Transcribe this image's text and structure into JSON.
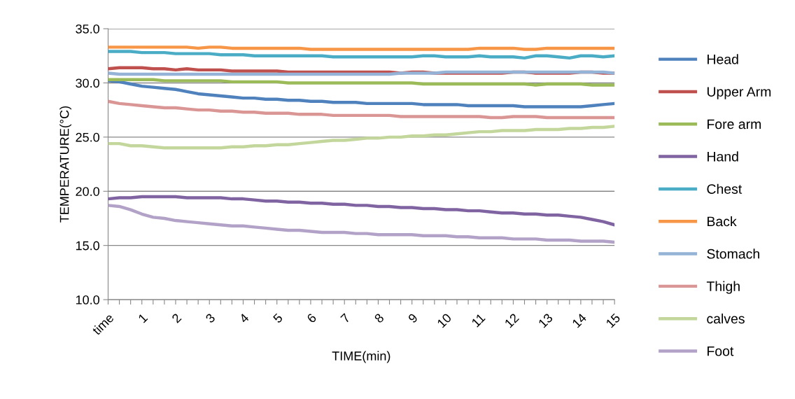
{
  "chart_data": {
    "type": "line",
    "xlabel": "TIME(min)",
    "ylabel": "TEMPERATURE(°C)",
    "categories": [
      "time",
      null,
      null,
      "1",
      null,
      null,
      "2",
      null,
      null,
      "3",
      null,
      null,
      "4",
      null,
      null,
      "5",
      null,
      null,
      "6",
      null,
      null,
      "7",
      null,
      null,
      "8",
      null,
      null,
      "9",
      null,
      null,
      "10",
      null,
      null,
      "11",
      null,
      null,
      "12",
      null,
      null,
      "13",
      null,
      null,
      "14",
      null,
      null,
      "15"
    ],
    "ylim": [
      10,
      35
    ],
    "yticks": [
      {
        "value": 10,
        "label": "10.0"
      },
      {
        "value": 15,
        "label": "15.0"
      },
      {
        "value": 20,
        "label": "20.0"
      },
      {
        "value": 25,
        "label": "25.0"
      },
      {
        "value": 30,
        "label": "30.0"
      },
      {
        "value": 35,
        "label": "35.0"
      }
    ],
    "grid": "y",
    "legend": "right",
    "marker": "none",
    "line_style": "solid",
    "series": [
      {
        "name": "Head",
        "color": "#4f81bd",
        "values": [
          30.2,
          30.1,
          29.9,
          29.7,
          29.6,
          29.5,
          29.4,
          29.2,
          29.0,
          28.9,
          28.8,
          28.7,
          28.6,
          28.6,
          28.5,
          28.5,
          28.4,
          28.4,
          28.3,
          28.3,
          28.2,
          28.2,
          28.2,
          28.1,
          28.1,
          28.1,
          28.1,
          28.1,
          28.0,
          28.0,
          28.0,
          28.0,
          27.9,
          27.9,
          27.9,
          27.9,
          27.9,
          27.8,
          27.8,
          27.8,
          27.8,
          27.8,
          27.8,
          27.9,
          28.0,
          28.1
        ]
      },
      {
        "name": "Upper Arm",
        "color": "#c0504d",
        "values": [
          31.3,
          31.4,
          31.4,
          31.4,
          31.3,
          31.3,
          31.2,
          31.3,
          31.2,
          31.2,
          31.2,
          31.1,
          31.1,
          31.1,
          31.1,
          31.1,
          31.0,
          31.0,
          31.0,
          31.0,
          31.0,
          31.0,
          31.0,
          31.0,
          31.0,
          31.0,
          30.9,
          31.0,
          31.0,
          30.9,
          30.9,
          30.9,
          30.9,
          30.9,
          30.9,
          30.9,
          31.0,
          31.0,
          30.9,
          30.9,
          30.9,
          30.9,
          31.0,
          31.0,
          30.9,
          30.9
        ]
      },
      {
        "name": "Fore arm",
        "color": "#9bbb59",
        "values": [
          30.3,
          30.3,
          30.3,
          30.3,
          30.3,
          30.2,
          30.2,
          30.2,
          30.2,
          30.2,
          30.2,
          30.1,
          30.1,
          30.1,
          30.1,
          30.1,
          30.0,
          30.0,
          30.0,
          30.0,
          30.0,
          30.0,
          30.0,
          30.0,
          30.0,
          30.0,
          30.0,
          30.0,
          29.9,
          29.9,
          29.9,
          29.9,
          29.9,
          29.9,
          29.9,
          29.9,
          29.9,
          29.9,
          29.8,
          29.9,
          29.9,
          29.9,
          29.9,
          29.8,
          29.8,
          29.8
        ]
      },
      {
        "name": "Hand",
        "color": "#8064a2",
        "values": [
          19.3,
          19.4,
          19.4,
          19.5,
          19.5,
          19.5,
          19.5,
          19.4,
          19.4,
          19.4,
          19.4,
          19.3,
          19.3,
          19.2,
          19.1,
          19.1,
          19.0,
          19.0,
          18.9,
          18.9,
          18.8,
          18.8,
          18.7,
          18.7,
          18.6,
          18.6,
          18.5,
          18.5,
          18.4,
          18.4,
          18.3,
          18.3,
          18.2,
          18.2,
          18.1,
          18.0,
          18.0,
          17.9,
          17.9,
          17.8,
          17.8,
          17.7,
          17.6,
          17.4,
          17.2,
          16.9
        ]
      },
      {
        "name": "Chest",
        "color": "#4bacc6",
        "values": [
          32.9,
          32.9,
          32.9,
          32.8,
          32.8,
          32.8,
          32.7,
          32.7,
          32.7,
          32.7,
          32.6,
          32.6,
          32.6,
          32.5,
          32.5,
          32.5,
          32.5,
          32.5,
          32.5,
          32.5,
          32.4,
          32.4,
          32.4,
          32.4,
          32.4,
          32.4,
          32.4,
          32.4,
          32.5,
          32.5,
          32.4,
          32.4,
          32.4,
          32.5,
          32.4,
          32.4,
          32.4,
          32.3,
          32.5,
          32.5,
          32.4,
          32.3,
          32.5,
          32.5,
          32.4,
          32.5
        ]
      },
      {
        "name": "Back",
        "color": "#f79646",
        "values": [
          33.3,
          33.3,
          33.3,
          33.3,
          33.3,
          33.3,
          33.3,
          33.3,
          33.2,
          33.3,
          33.3,
          33.2,
          33.2,
          33.2,
          33.2,
          33.2,
          33.2,
          33.2,
          33.1,
          33.1,
          33.1,
          33.1,
          33.1,
          33.1,
          33.1,
          33.1,
          33.1,
          33.1,
          33.1,
          33.1,
          33.1,
          33.1,
          33.1,
          33.2,
          33.2,
          33.2,
          33.2,
          33.1,
          33.1,
          33.2,
          33.2,
          33.2,
          33.2,
          33.2,
          33.2,
          33.2
        ]
      },
      {
        "name": "Stomach",
        "color": "#95b3d7",
        "values": [
          30.9,
          30.8,
          30.8,
          30.8,
          30.8,
          30.8,
          30.8,
          30.8,
          30.8,
          30.8,
          30.8,
          30.8,
          30.8,
          30.8,
          30.8,
          30.8,
          30.8,
          30.8,
          30.8,
          30.8,
          30.8,
          30.8,
          30.8,
          30.8,
          30.8,
          30.8,
          30.9,
          30.9,
          30.9,
          30.9,
          31.0,
          31.0,
          31.0,
          31.0,
          31.0,
          31.0,
          31.0,
          31.0,
          31.0,
          31.0,
          31.0,
          31.0,
          31.0,
          31.0,
          31.0,
          30.9
        ]
      },
      {
        "name": "Thigh",
        "color": "#d99694",
        "values": [
          28.3,
          28.1,
          28.0,
          27.9,
          27.8,
          27.7,
          27.7,
          27.6,
          27.5,
          27.5,
          27.4,
          27.4,
          27.3,
          27.3,
          27.2,
          27.2,
          27.2,
          27.1,
          27.1,
          27.1,
          27.0,
          27.0,
          27.0,
          27.0,
          27.0,
          27.0,
          26.9,
          26.9,
          26.9,
          26.9,
          26.9,
          26.9,
          26.9,
          26.9,
          26.8,
          26.8,
          26.9,
          26.9,
          26.9,
          26.8,
          26.8,
          26.8,
          26.8,
          26.8,
          26.8,
          26.8
        ]
      },
      {
        "name": "calves",
        "color": "#c3d69b",
        "values": [
          24.4,
          24.4,
          24.2,
          24.2,
          24.1,
          24.0,
          24.0,
          24.0,
          24.0,
          24.0,
          24.0,
          24.1,
          24.1,
          24.2,
          24.2,
          24.3,
          24.3,
          24.4,
          24.5,
          24.6,
          24.7,
          24.7,
          24.8,
          24.9,
          24.9,
          25.0,
          25.0,
          25.1,
          25.1,
          25.2,
          25.2,
          25.3,
          25.4,
          25.5,
          25.5,
          25.6,
          25.6,
          25.6,
          25.7,
          25.7,
          25.7,
          25.8,
          25.8,
          25.9,
          25.9,
          26.0
        ]
      },
      {
        "name": "Foot",
        "color": "#b3a2c7",
        "values": [
          18.7,
          18.6,
          18.3,
          17.9,
          17.6,
          17.5,
          17.3,
          17.2,
          17.1,
          17.0,
          16.9,
          16.8,
          16.8,
          16.7,
          16.6,
          16.5,
          16.4,
          16.4,
          16.3,
          16.2,
          16.2,
          16.2,
          16.1,
          16.1,
          16.0,
          16.0,
          16.0,
          16.0,
          15.9,
          15.9,
          15.9,
          15.8,
          15.8,
          15.7,
          15.7,
          15.7,
          15.6,
          15.6,
          15.6,
          15.5,
          15.5,
          15.5,
          15.4,
          15.4,
          15.4,
          15.3
        ]
      }
    ]
  }
}
